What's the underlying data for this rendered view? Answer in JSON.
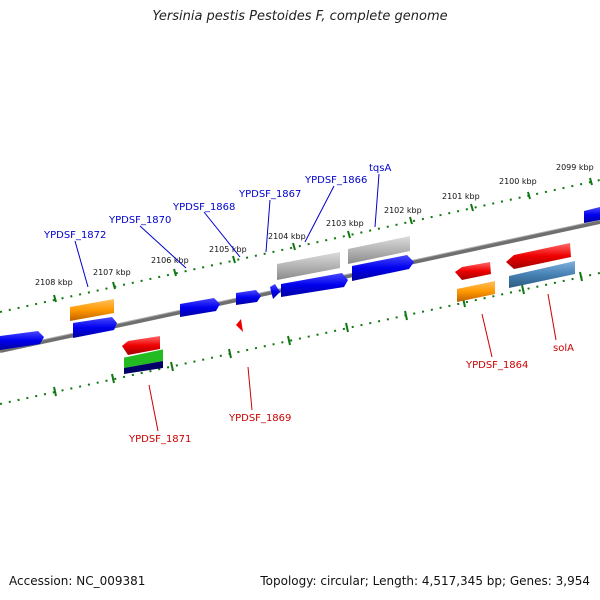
{
  "title": "Yersinia pestis Pestoides F, complete genome",
  "footer": {
    "accession": "Accession: NC_009381",
    "summary": "Topology: circular; Length: 4,517,345 bp; Genes: 3,954"
  },
  "tick_labels": [
    "2099 kbp",
    "2100 kbp",
    "2101 kbp",
    "2102 kbp",
    "2103 kbp",
    "2104 kbp",
    "2105 kbp",
    "2106 kbp",
    "2107 kbp",
    "2108 kbp"
  ],
  "upper_labels": [
    "YPDSF_1872",
    "YPDSF_1870",
    "YPDSF_1868",
    "YPDSF_1867",
    "YPDSF_1866",
    "tqsA"
  ],
  "lower_labels": [
    "YPDSF_1871",
    "YPDSF_1869",
    "YPDSF_1864",
    "solA"
  ],
  "colors": {
    "upper_label": "#0000cc",
    "lower_label": "#cc0000",
    "backbone": "#777777",
    "tick": "#117711",
    "blue": "#0000ee",
    "red": "#ee0000",
    "orange": "#ff9900",
    "gray": "#b0b0b0",
    "steel": "#4682b4",
    "green": "#22bb22",
    "navy": "#000066"
  }
}
